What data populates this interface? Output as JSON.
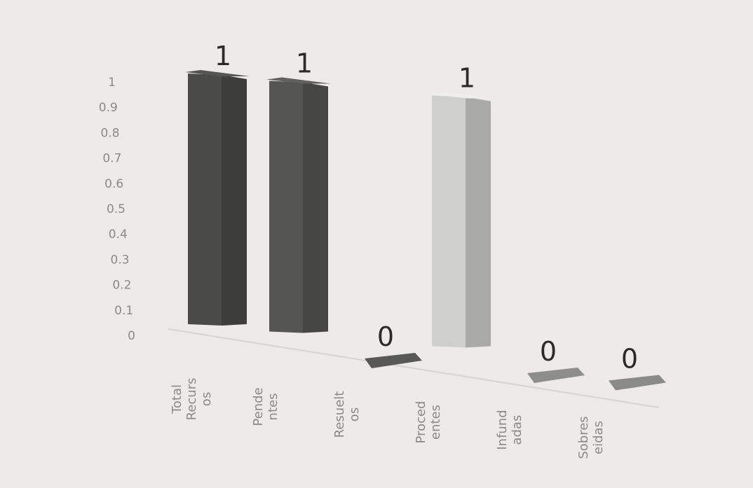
{
  "chart_data": {
    "type": "bar",
    "categories": [
      "Total Recurs os",
      "Pende ntes",
      "Resuelt os",
      "Proced entes",
      "Infund adas",
      "Sobres eidas"
    ],
    "category_lines": [
      [
        "Total",
        "Recurs",
        "os"
      ],
      [
        "Pende",
        "ntes"
      ],
      [
        "Resuelt",
        "os"
      ],
      [
        "Proced",
        "entes"
      ],
      [
        "Infund",
        "adas"
      ],
      [
        "Sobres",
        "eidas"
      ]
    ],
    "values": [
      1,
      1,
      0,
      1,
      0,
      0
    ],
    "data_labels": [
      "1",
      "1",
      "0",
      "1",
      "0",
      "0"
    ],
    "y_ticks": [
      "0",
      "0.1",
      "0.2",
      "0.3",
      "0.4",
      "0.5",
      "0.6",
      "0.7",
      "0.8",
      "0.9",
      "1"
    ],
    "ylim": [
      0,
      1
    ],
    "three_d": true,
    "grid": false,
    "legend": "none",
    "title": "",
    "xlabel": "",
    "ylabel": "",
    "colors": {
      "background": "#ecebe7",
      "bars": [
        "#4a4a48",
        "#545452",
        "#585856",
        "#cfcfcd",
        "#8d8d8b",
        "#8a8a88"
      ],
      "axis_text": "#8a8a88",
      "data_label": "#2a2a28"
    }
  }
}
